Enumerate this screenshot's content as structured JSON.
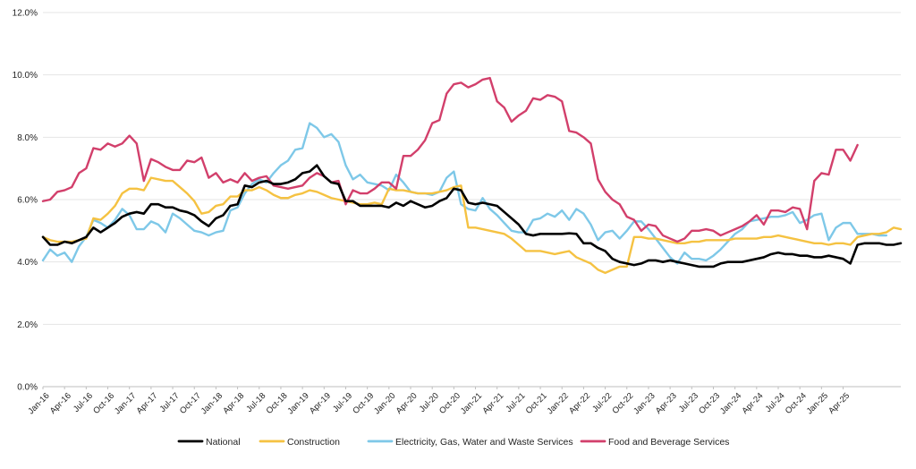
{
  "chart_data": {
    "type": "line",
    "title": "",
    "xlabel": "",
    "ylabel": "",
    "ylim": [
      0,
      12
    ],
    "yticks": [
      "0.0%",
      "2.0%",
      "4.0%",
      "6.0%",
      "8.0%",
      "10.0%",
      "12.0%"
    ],
    "grid": "horizontal",
    "legend_position": "bottom",
    "x_start": "Jan-16",
    "x_tick_labels": [
      "Jan-16",
      "Apr-16",
      "Jul-16",
      "Oct-16",
      "Jan-17",
      "Apr-17",
      "Jul-17",
      "Oct-17",
      "Jan-18",
      "Apr-18",
      "Jul-18",
      "Oct-18",
      "Jan-19",
      "Apr-19",
      "Jul-19",
      "Oct-19",
      "Jan-20",
      "Apr-20",
      "Jul-20",
      "Oct-20",
      "Jan-21",
      "Apr-21",
      "Jul-21",
      "Oct-21",
      "Jan-22",
      "Apr-22",
      "Jul-22",
      "Oct-22",
      "Jan-23",
      "Apr-23",
      "Jul-23",
      "Oct-23",
      "Jan-24",
      "Apr-24",
      "Jul-24",
      "Oct-24",
      "Jan-25",
      "Apr-25"
    ],
    "series": [
      {
        "name": "National",
        "color": "#000000",
        "values": [
          4.8,
          4.55,
          4.55,
          4.65,
          4.6,
          4.7,
          4.8,
          5.1,
          4.95,
          5.1,
          5.25,
          5.45,
          5.55,
          5.6,
          5.55,
          5.85,
          5.85,
          5.75,
          5.75,
          5.65,
          5.6,
          5.5,
          5.3,
          5.15,
          5.4,
          5.5,
          5.8,
          5.85,
          6.45,
          6.4,
          6.55,
          6.6,
          6.5,
          6.5,
          6.55,
          6.65,
          6.85,
          6.9,
          7.1,
          6.75,
          6.55,
          6.5,
          5.95,
          5.95,
          5.8,
          5.8,
          5.8,
          5.8,
          5.75,
          5.9,
          5.8,
          5.95,
          5.85,
          5.75,
          5.8,
          5.95,
          6.05,
          6.35,
          6.3,
          5.9,
          5.85,
          5.9,
          5.85,
          5.8,
          5.6,
          5.4,
          5.2,
          4.9,
          4.85,
          4.9,
          4.9,
          4.9,
          4.9,
          4.92,
          4.9,
          4.6,
          4.6,
          4.45,
          4.35,
          4.1,
          4.0,
          3.95,
          3.9,
          3.95,
          4.05,
          4.05,
          4.0,
          4.05,
          4.0,
          3.95,
          3.9,
          3.85,
          3.85,
          3.85,
          3.95,
          4.0,
          4.0,
          4.0,
          4.05,
          4.1,
          4.15,
          4.25,
          4.3,
          4.25,
          4.25,
          4.2,
          4.2,
          4.15,
          4.15,
          4.2,
          4.15,
          4.1,
          3.95,
          4.55,
          4.6,
          4.6,
          4.6,
          4.55,
          4.55,
          4.6
        ]
      },
      {
        "name": "Construction",
        "color": "#F5C242",
        "values": [
          4.8,
          4.7,
          4.65,
          4.65,
          4.65,
          4.7,
          4.75,
          5.4,
          5.35,
          5.55,
          5.8,
          6.2,
          6.35,
          6.35,
          6.3,
          6.7,
          6.65,
          6.6,
          6.6,
          6.4,
          6.2,
          5.95,
          5.55,
          5.6,
          5.8,
          5.85,
          6.1,
          6.1,
          6.3,
          6.3,
          6.4,
          6.3,
          6.15,
          6.05,
          6.05,
          6.15,
          6.2,
          6.3,
          6.25,
          6.15,
          6.05,
          6.0,
          5.95,
          5.9,
          5.85,
          5.85,
          5.9,
          5.85,
          6.35,
          6.3,
          6.3,
          6.25,
          6.2,
          6.2,
          6.2,
          6.25,
          6.3,
          6.4,
          6.45,
          5.1,
          5.1,
          5.05,
          5.0,
          4.95,
          4.9,
          4.75,
          4.55,
          4.35,
          4.35,
          4.35,
          4.3,
          4.25,
          4.3,
          4.35,
          4.15,
          4.05,
          3.95,
          3.75,
          3.65,
          3.75,
          3.85,
          3.85,
          4.8,
          4.8,
          4.75,
          4.75,
          4.7,
          4.65,
          4.6,
          4.6,
          4.65,
          4.65,
          4.7,
          4.7,
          4.7,
          4.7,
          4.75,
          4.75,
          4.75,
          4.75,
          4.8,
          4.8,
          4.85,
          4.8,
          4.75,
          4.7,
          4.65,
          4.6,
          4.6,
          4.55,
          4.6,
          4.6,
          4.55,
          4.8,
          4.85,
          4.9,
          4.9,
          4.95,
          5.1,
          5.05
        ]
      },
      {
        "name": "Electricity, Gas, Water and Waste Services",
        "color": "#7EC8E8",
        "values": [
          4.05,
          4.4,
          4.2,
          4.3,
          4.0,
          4.5,
          4.8,
          5.35,
          5.25,
          5.1,
          5.35,
          5.7,
          5.5,
          5.05,
          5.05,
          5.3,
          5.2,
          4.95,
          5.55,
          5.4,
          5.2,
          5.0,
          4.95,
          4.85,
          4.95,
          5.0,
          5.65,
          5.75,
          6.2,
          6.5,
          6.65,
          6.55,
          6.85,
          7.1,
          7.25,
          7.6,
          7.65,
          8.45,
          8.3,
          8.0,
          8.1,
          7.85,
          7.1,
          6.65,
          6.8,
          6.55,
          6.5,
          6.45,
          6.3,
          6.8,
          6.55,
          6.25,
          6.2,
          6.2,
          6.15,
          6.25,
          6.7,
          6.9,
          5.85,
          5.7,
          5.65,
          6.05,
          5.7,
          5.5,
          5.25,
          5.0,
          4.95,
          4.95,
          5.35,
          5.4,
          5.55,
          5.45,
          5.65,
          5.35,
          5.7,
          5.55,
          5.2,
          4.7,
          4.95,
          5.0,
          4.75,
          5.0,
          5.3,
          5.3,
          5.05,
          4.75,
          4.45,
          4.15,
          3.95,
          4.3,
          4.1,
          4.1,
          4.05,
          4.2,
          4.4,
          4.65,
          4.9,
          5.05,
          5.3,
          5.35,
          5.4,
          5.45,
          5.45,
          5.5,
          5.6,
          5.25,
          5.35,
          5.5,
          5.55,
          4.7,
          5.1,
          5.25,
          5.25,
          4.9,
          4.9,
          4.9,
          4.85,
          4.85
        ]
      },
      {
        "name": "Food and Beverage Services",
        "color": "#D23F6B",
        "values": [
          5.95,
          6.0,
          6.25,
          6.3,
          6.4,
          6.85,
          7.0,
          7.65,
          7.6,
          7.8,
          7.7,
          7.8,
          8.05,
          7.8,
          6.6,
          7.3,
          7.2,
          7.05,
          6.95,
          6.95,
          7.25,
          7.2,
          7.35,
          6.7,
          6.85,
          6.55,
          6.65,
          6.55,
          6.85,
          6.6,
          6.7,
          6.75,
          6.45,
          6.4,
          6.35,
          6.4,
          6.45,
          6.7,
          6.85,
          6.75,
          6.55,
          6.6,
          5.85,
          6.3,
          6.2,
          6.2,
          6.35,
          6.55,
          6.55,
          6.35,
          7.4,
          7.4,
          7.6,
          7.9,
          8.45,
          8.55,
          9.4,
          9.7,
          9.75,
          9.6,
          9.7,
          9.85,
          9.9,
          9.15,
          8.95,
          8.5,
          8.7,
          8.85,
          9.25,
          9.2,
          9.35,
          9.3,
          9.15,
          8.2,
          8.15,
          8.0,
          7.8,
          6.65,
          6.25,
          6.0,
          5.85,
          5.45,
          5.35,
          5.0,
          5.2,
          5.15,
          4.85,
          4.75,
          4.65,
          4.75,
          5.0,
          5.0,
          5.05,
          5.0,
          4.85,
          4.95,
          5.05,
          5.15,
          5.3,
          5.5,
          5.2,
          5.65,
          5.65,
          5.6,
          5.75,
          5.7,
          5.05,
          6.6,
          6.85,
          6.8,
          7.6,
          7.6,
          7.25,
          7.75
        ]
      }
    ]
  }
}
